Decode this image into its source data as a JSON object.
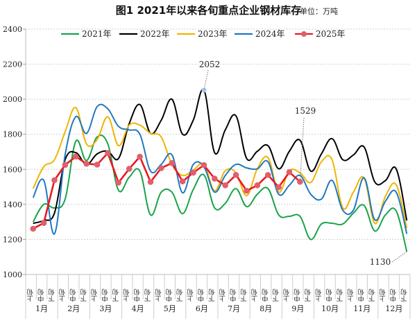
{
  "chart_data": {
    "type": "line",
    "title": "图1  2021年以来各旬重点企业钢材库存",
    "unit": "单位：万吨",
    "xlabel": "",
    "ylabel": "",
    "ylim": [
      1000,
      2400
    ],
    "yticks": [
      1000,
      1200,
      1400,
      1600,
      1800,
      2000,
      2200,
      2400
    ],
    "grid": true,
    "legend_position": "top",
    "months": [
      "1月",
      "2月",
      "3月",
      "4月",
      "5月",
      "6月",
      "7月",
      "8月",
      "9月",
      "10月",
      "11月",
      "12月"
    ],
    "dekads": [
      "上旬",
      "中旬",
      "下旬"
    ],
    "series": [
      {
        "name": "2021年",
        "color": "#1aa34a",
        "smooth": true,
        "markers": false,
        "values": [
          1300,
          1400,
          1380,
          1430,
          1760,
          1650,
          1785,
          1745,
          1480,
          1555,
          1590,
          1340,
          1470,
          1470,
          1347,
          1485,
          1568,
          1380,
          1406,
          1490,
          1387,
          1458,
          1490,
          1340,
          1332,
          1332,
          1200,
          1288,
          1292,
          1288,
          1350,
          1394,
          1248,
          1340,
          1363,
          1130
        ]
      },
      {
        "name": "2022年",
        "color": "#000000",
        "smooth": true,
        "markers": false,
        "values": [
          1292,
          1308,
          1350,
          1655,
          1695,
          1628,
          1688,
          1703,
          1662,
          1860,
          1970,
          1805,
          1880,
          2000,
          1800,
          1880,
          2052,
          1695,
          1825,
          1905,
          1662,
          1703,
          1735,
          1603,
          1703,
          1766,
          1590,
          1688,
          1775,
          1655,
          1682,
          1727,
          1528,
          1536,
          1603,
          1308
        ]
      },
      {
        "name": "2023年",
        "color": "#f0b400",
        "smooth": true,
        "markers": false,
        "values": [
          1490,
          1615,
          1655,
          1814,
          1952,
          1745,
          1770,
          1900,
          1735,
          1852,
          1852,
          1805,
          1785,
          1628,
          1565,
          1596,
          1628,
          1478,
          1592,
          1580,
          1450,
          1603,
          1667,
          1470,
          1592,
          1580,
          1525,
          1643,
          1655,
          1380,
          1470,
          1551,
          1292,
          1446,
          1512,
          1265
        ]
      },
      {
        "name": "2024年",
        "color": "#1f78c1",
        "smooth": true,
        "markers": false,
        "values": [
          1438,
          1537,
          1232,
          1683,
          1900,
          1805,
          1958,
          1945,
          1845,
          1825,
          1800,
          1590,
          1628,
          1683,
          1466,
          1628,
          1615,
          1470,
          1565,
          1628,
          1608,
          1603,
          1643,
          1458,
          1509,
          1565,
          1458,
          1430,
          1537,
          1367,
          1367,
          1551,
          1312,
          1418,
          1470,
          1232
        ]
      },
      {
        "name": "2025年",
        "color": "#e8191e",
        "marker_color": "#e0606a",
        "smooth": false,
        "markers": true,
        "values": [
          1261,
          1294,
          1538,
          1625,
          1673,
          1632,
          1627,
          1693,
          1524,
          1603,
          1672,
          1528,
          1607,
          1636,
          1531,
          1581,
          1624,
          1547,
          1509,
          1568,
          1478,
          1509,
          1568,
          1498,
          1584,
          1529
        ]
      }
    ],
    "annotations": [
      {
        "text": "2052",
        "series": "2022年",
        "index": 16
      },
      {
        "text": "1529",
        "series": "2025年",
        "index": 25
      },
      {
        "text": "1130",
        "series": "2021年",
        "index": 35
      }
    ]
  }
}
